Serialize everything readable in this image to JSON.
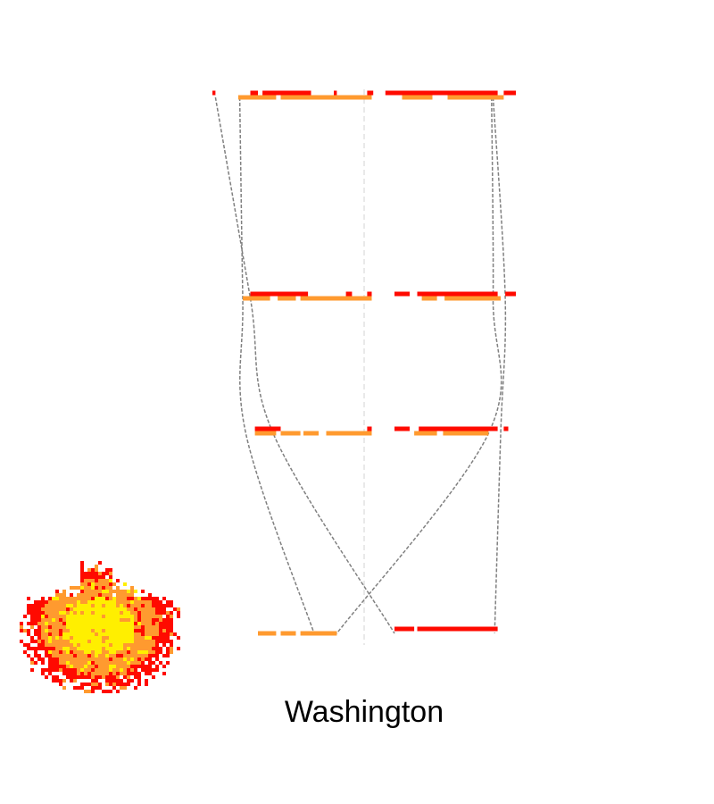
{
  "chart_data": {
    "type": "line",
    "title": "Washington",
    "grid": false,
    "legend": "none",
    "colors": {
      "series_a": "#ff9a2f",
      "series_b": "#ff0a00",
      "connector": "#808080",
      "axis": "#d3d3d3",
      "thumbnail": [
        "#ffef00",
        "#ff9a2f",
        "#ff0a00"
      ]
    },
    "x": [
      0,
      1,
      2,
      3
    ],
    "series": [
      {
        "values": [
          -0.82,
          -0.8,
          -0.78,
          -0.33
        ],
        "band_segments": [
          [
            [
              -0.83,
              -0.58
            ],
            [
              -0.55,
              0.05
            ],
            [
              0.25,
              0.45
            ],
            [
              0.55,
              0.92
            ]
          ],
          [
            [
              -0.8,
              -0.62
            ],
            [
              -0.57,
              -0.45
            ],
            [
              -0.42,
              0.05
            ],
            [
              0.38,
              0.48
            ],
            [
              0.53,
              0.9
            ]
          ],
          [
            [
              -0.72,
              -0.58
            ],
            [
              -0.55,
              -0.42
            ],
            [
              -0.4,
              -0.3
            ],
            [
              -0.25,
              0.05
            ],
            [
              0.33,
              0.48
            ],
            [
              0.52,
              0.82
            ]
          ],
          [
            [
              -0.7,
              -0.58
            ],
            [
              -0.55,
              -0.45
            ],
            [
              -0.42,
              -0.18
            ]
          ]
        ]
      },
      {
        "values": [
          0.85,
          0.93,
          0.9,
          0.86
        ],
        "band_segments": [
          [
            [
              -1.0,
              -0.98
            ],
            [
              -0.75,
              -0.7
            ],
            [
              -0.67,
              -0.35
            ],
            [
              -0.2,
              -0.18
            ],
            [
              0.02,
              0.06
            ],
            [
              0.14,
              0.88
            ],
            [
              0.92,
              1.0
            ]
          ],
          [
            [
              -0.75,
              -0.37
            ],
            [
              -0.12,
              -0.08
            ],
            [
              0.02,
              0.05
            ],
            [
              0.2,
              0.3
            ],
            [
              0.35,
              0.88
            ],
            [
              0.93,
              1.0
            ]
          ],
          [
            [
              -0.72,
              -0.55
            ],
            [
              0.02,
              0.05
            ],
            [
              0.2,
              0.3
            ],
            [
              0.36,
              0.88
            ],
            [
              0.92,
              0.95
            ]
          ],
          [
            [
              0.2,
              0.33
            ],
            [
              0.35,
              0.88
            ]
          ]
        ]
      },
      {
        "values": [
          -0.98,
          -0.75,
          -0.6,
          0.2
        ]
      },
      {
        "values": [
          0.84,
          0.85,
          0.82,
          -0.18
        ]
      }
    ],
    "ylim": [
      -1,
      1
    ]
  }
}
